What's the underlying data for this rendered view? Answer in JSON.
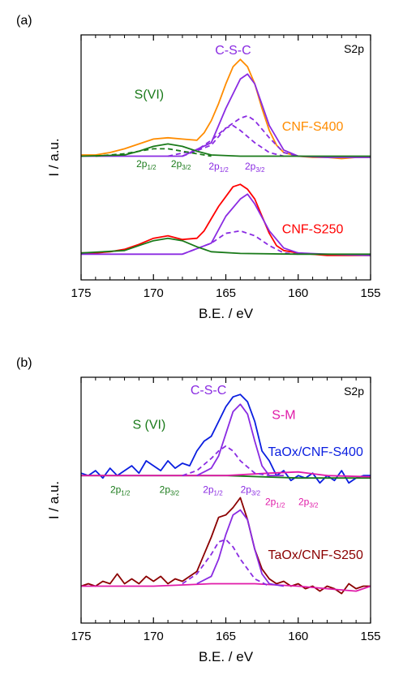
{
  "chart_data": [
    {
      "type": "line",
      "panel_label": "(a)",
      "corner_label": "S2p",
      "xlabel": "B.E. / eV",
      "ylabel": "I / a.u.",
      "xlim": [
        175,
        155
      ],
      "x_ticks": [
        175,
        170,
        165,
        160,
        155
      ],
      "ylim": [
        0,
        1
      ],
      "y_ticks_shown": false,
      "annotations": [
        {
          "text": "C-S-C",
          "color": "#8a2be2",
          "x": 164.5,
          "y": 0.92
        },
        {
          "text": "S(VI)",
          "color": "#1a7a1a",
          "x": 170.3,
          "y": 0.74
        },
        {
          "text": "CNF-S400",
          "color": "#ff8c00",
          "x": 159.0,
          "y": 0.61
        },
        {
          "text": "CNF-S250",
          "color": "#ff0000",
          "x": 159.0,
          "y": 0.19
        },
        {
          "text": "2p",
          "sub": "1/2",
          "color": "#1a7a1a",
          "x": 170.5,
          "y": 0.46
        },
        {
          "text": "2p",
          "sub": "3/2",
          "color": "#1a7a1a",
          "x": 168.1,
          "y": 0.46
        },
        {
          "text": "2p",
          "sub": "1/2",
          "color": "#8a2be2",
          "x": 165.5,
          "y": 0.45
        },
        {
          "text": "2p",
          "sub": "3/2",
          "color": "#8a2be2",
          "x": 163.0,
          "y": 0.45
        }
      ],
      "series": [
        {
          "name": "CNF-S400",
          "color": "#ff8c00",
          "style": "solid",
          "x": [
            175,
            174,
            173,
            172,
            171,
            170,
            169,
            168,
            167,
            166.5,
            166,
            165.5,
            165,
            164.5,
            164,
            163.5,
            163,
            162.5,
            162,
            161.5,
            161,
            160,
            159,
            158,
            157,
            156,
            155
          ],
          "y": [
            0.51,
            0.51,
            0.52,
            0.535,
            0.555,
            0.575,
            0.58,
            0.575,
            0.57,
            0.6,
            0.65,
            0.72,
            0.8,
            0.87,
            0.9,
            0.87,
            0.8,
            0.7,
            0.61,
            0.55,
            0.52,
            0.505,
            0.5,
            0.5,
            0.495,
            0.5,
            0.5
          ]
        },
        {
          "name": "CNF-S400 fit envelope",
          "color": "#8a2be2",
          "style": "solid",
          "x": [
            175,
            172,
            170,
            168,
            166,
            165,
            164,
            163.5,
            163,
            162,
            161,
            160,
            158,
            155
          ],
          "y": [
            0.505,
            0.505,
            0.505,
            0.505,
            0.56,
            0.7,
            0.82,
            0.84,
            0.8,
            0.63,
            0.53,
            0.505,
            0.5,
            0.5
          ]
        },
        {
          "name": "CNF-S400 2p3/2 (C-S-C)",
          "color": "#8a2be2",
          "style": "dashed",
          "x": [
            168,
            166,
            165,
            164,
            163.5,
            163,
            162,
            161,
            160
          ],
          "y": [
            0.505,
            0.55,
            0.62,
            0.66,
            0.67,
            0.65,
            0.58,
            0.52,
            0.505
          ]
        },
        {
          "name": "CNF-S400 2p1/2 (C-S-C)",
          "color": "#8a2be2",
          "style": "dashed",
          "x": [
            169,
            167,
            166,
            165,
            164.5,
            164,
            163,
            162,
            161
          ],
          "y": [
            0.505,
            0.53,
            0.57,
            0.62,
            0.63,
            0.61,
            0.56,
            0.52,
            0.505
          ]
        },
        {
          "name": "CNF-S400 S(VI)",
          "color": "#1a7a1a",
          "style": "solid",
          "x": [
            175,
            172,
            171,
            170,
            169,
            168,
            167,
            166,
            164,
            160,
            155
          ],
          "y": [
            0.505,
            0.51,
            0.525,
            0.545,
            0.555,
            0.545,
            0.525,
            0.51,
            0.505,
            0.505,
            0.505
          ]
        },
        {
          "name": "CNF-S400 S(VI) components",
          "color": "#1a7a1a",
          "style": "dashed",
          "x": [
            174,
            172,
            171,
            170,
            169,
            168,
            167,
            166
          ],
          "y": [
            0.505,
            0.515,
            0.525,
            0.535,
            0.535,
            0.525,
            0.515,
            0.505
          ]
        },
        {
          "name": "CNF-S250",
          "color": "#ff0000",
          "style": "solid",
          "x": [
            175,
            174,
            173,
            172,
            171,
            170,
            169,
            168,
            167,
            166.5,
            166,
            165.5,
            165,
            164.5,
            164,
            163.5,
            163,
            162.5,
            162,
            161.5,
            161,
            160,
            159,
            158,
            157,
            156,
            155
          ],
          "y": [
            0.11,
            0.11,
            0.115,
            0.125,
            0.145,
            0.17,
            0.18,
            0.165,
            0.17,
            0.2,
            0.25,
            0.3,
            0.34,
            0.38,
            0.39,
            0.37,
            0.33,
            0.26,
            0.19,
            0.14,
            0.12,
            0.11,
            0.105,
            0.1,
            0.1,
            0.1,
            0.1
          ]
        },
        {
          "name": "CNF-S250 fit envelope",
          "color": "#8a2be2",
          "style": "solid",
          "x": [
            175,
            172,
            170,
            168,
            166,
            165,
            164,
            163.5,
            163,
            162,
            161,
            160,
            158,
            155
          ],
          "y": [
            0.105,
            0.105,
            0.105,
            0.105,
            0.15,
            0.26,
            0.33,
            0.35,
            0.31,
            0.2,
            0.13,
            0.11,
            0.105,
            0.1
          ]
        },
        {
          "name": "CNF-S250 2p (C-S-C)",
          "color": "#8a2be2",
          "style": "dashed",
          "x": [
            168,
            166,
            165,
            164,
            163,
            162,
            161,
            160
          ],
          "y": [
            0.105,
            0.15,
            0.19,
            0.2,
            0.18,
            0.14,
            0.11,
            0.105
          ]
        },
        {
          "name": "CNF-S250 S(VI)",
          "color": "#1a7a1a",
          "style": "solid",
          "x": [
            175,
            172,
            171,
            170,
            169,
            168,
            167,
            166,
            164,
            160,
            155
          ],
          "y": [
            0.11,
            0.12,
            0.14,
            0.16,
            0.17,
            0.16,
            0.135,
            0.115,
            0.108,
            0.105,
            0.105
          ]
        }
      ]
    },
    {
      "type": "line",
      "panel_label": "(b)",
      "corner_label": "S2p",
      "xlabel": "B.E. / eV",
      "ylabel": "I / a.u.",
      "xlim": [
        175,
        155
      ],
      "x_ticks": [
        175,
        170,
        165,
        160,
        155
      ],
      "ylim": [
        0,
        1
      ],
      "y_ticks_shown": false,
      "annotations": [
        {
          "text": "C-S-C",
          "color": "#8a2be2",
          "x": 166.2,
          "y": 0.93
        },
        {
          "text": "S-M",
          "color": "#e01aa8",
          "x": 161.0,
          "y": 0.83
        },
        {
          "text": "S (VI)",
          "color": "#1a7a1a",
          "x": 170.3,
          "y": 0.79
        },
        {
          "text": "TaOx/CNF-S400",
          "color": "#0a1ee0",
          "x": 158.8,
          "y": 0.68
        },
        {
          "text": "TaOx/CNF-S250",
          "color": "#8b0000",
          "x": 158.8,
          "y": 0.26
        },
        {
          "text": "2p",
          "sub": "1/2",
          "color": "#1a7a1a",
          "x": 172.3,
          "y": 0.53
        },
        {
          "text": "2p",
          "sub": "3/2",
          "color": "#1a7a1a",
          "x": 168.9,
          "y": 0.53
        },
        {
          "text": "2p",
          "sub": "1/2",
          "color": "#8a2be2",
          "x": 165.9,
          "y": 0.53
        },
        {
          "text": "2p",
          "sub": "3/2",
          "color": "#8a2be2",
          "x": 163.3,
          "y": 0.53
        },
        {
          "text": "2p",
          "sub": "1/2",
          "color": "#e01aa8",
          "x": 161.6,
          "y": 0.48
        },
        {
          "text": "2p",
          "sub": "3/2",
          "color": "#e01aa8",
          "x": 159.3,
          "y": 0.48
        }
      ],
      "series": [
        {
          "name": "TaOx/CNF-S400",
          "color": "#0a1ee0",
          "style": "solid",
          "x": [
            175,
            174.5,
            174,
            173.5,
            173,
            172.5,
            172,
            171.5,
            171,
            170.5,
            170,
            169.5,
            169,
            168.5,
            168,
            167.5,
            167,
            166.5,
            166,
            165.5,
            165,
            164.5,
            164,
            163.5,
            163,
            162.5,
            162,
            161.5,
            161,
            160.5,
            160,
            159.5,
            159,
            158.5,
            158,
            157.5,
            157,
            156.5,
            156,
            155.5,
            155
          ],
          "y": [
            0.61,
            0.6,
            0.62,
            0.59,
            0.63,
            0.6,
            0.62,
            0.64,
            0.61,
            0.66,
            0.64,
            0.62,
            0.66,
            0.63,
            0.65,
            0.64,
            0.7,
            0.74,
            0.76,
            0.82,
            0.88,
            0.92,
            0.93,
            0.9,
            0.82,
            0.7,
            0.66,
            0.6,
            0.62,
            0.58,
            0.6,
            0.59,
            0.61,
            0.57,
            0.6,
            0.58,
            0.62,
            0.57,
            0.59,
            0.6,
            0.6
          ]
        },
        {
          "name": "TaOx/CNF-S400 background",
          "color": "#1a7a1a",
          "style": "solid",
          "x": [
            175,
            170,
            165,
            160,
            155
          ],
          "y": [
            0.6,
            0.6,
            0.6,
            0.59,
            0.59
          ]
        },
        {
          "name": "TaOx/CNF-S400 S-M",
          "color": "#e01aa8",
          "style": "solid",
          "x": [
            175,
            165,
            162,
            160,
            158,
            155
          ],
          "y": [
            0.6,
            0.6,
            0.61,
            0.615,
            0.6,
            0.595
          ]
        },
        {
          "name": "TaOx/CNF-S400 C-S-C 2p3/2",
          "color": "#8a2be2",
          "style": "solid",
          "x": [
            167,
            166,
            165.5,
            165,
            164.5,
            164,
            163.5,
            163,
            162.5,
            162,
            161
          ],
          "y": [
            0.6,
            0.63,
            0.68,
            0.77,
            0.86,
            0.89,
            0.85,
            0.74,
            0.64,
            0.6,
            0.6
          ]
        },
        {
          "name": "TaOx/CNF-S400 C-S-C 2p1/2",
          "color": "#8a2be2",
          "style": "dashed",
          "x": [
            168,
            167,
            166,
            165.5,
            165,
            164.5,
            164,
            163,
            162
          ],
          "y": [
            0.6,
            0.62,
            0.67,
            0.7,
            0.72,
            0.7,
            0.66,
            0.61,
            0.6
          ]
        },
        {
          "name": "TaOx/CNF-S250",
          "color": "#8b0000",
          "style": "solid",
          "x": [
            175,
            174.5,
            174,
            173.5,
            173,
            172.5,
            172,
            171.5,
            171,
            170.5,
            170,
            169.5,
            169,
            168.5,
            168,
            167.5,
            167,
            166.5,
            166,
            165.5,
            165,
            164.5,
            164,
            163.5,
            163,
            162.5,
            162,
            161.5,
            161,
            160.5,
            160,
            159.5,
            159,
            158.5,
            158,
            157.5,
            157,
            156.5,
            156,
            155.5,
            155
          ],
          "y": [
            0.15,
            0.16,
            0.15,
            0.17,
            0.16,
            0.2,
            0.16,
            0.18,
            0.16,
            0.19,
            0.17,
            0.19,
            0.16,
            0.18,
            0.17,
            0.19,
            0.21,
            0.28,
            0.35,
            0.43,
            0.44,
            0.47,
            0.51,
            0.42,
            0.3,
            0.22,
            0.18,
            0.16,
            0.17,
            0.15,
            0.16,
            0.14,
            0.15,
            0.13,
            0.15,
            0.14,
            0.12,
            0.16,
            0.14,
            0.15,
            0.15
          ]
        },
        {
          "name": "TaOx/CNF-S250 background",
          "color": "#e01aa8",
          "style": "solid",
          "x": [
            175,
            170,
            166,
            163,
            160,
            158,
            156,
            155
          ],
          "y": [
            0.15,
            0.15,
            0.16,
            0.16,
            0.15,
            0.14,
            0.13,
            0.15
          ]
        },
        {
          "name": "TaOx/CNF-S250 C-S-C 2p3/2",
          "color": "#8a2be2",
          "style": "solid",
          "x": [
            167,
            166,
            165.5,
            165,
            164.5,
            164,
            163.5,
            163,
            162.5,
            162,
            161
          ],
          "y": [
            0.16,
            0.19,
            0.26,
            0.36,
            0.44,
            0.46,
            0.42,
            0.3,
            0.2,
            0.16,
            0.15
          ]
        },
        {
          "name": "TaOx/CNF-S250 C-S-C 2p1/2",
          "color": "#8a2be2",
          "style": "dashed",
          "x": [
            168,
            167,
            166,
            165.5,
            165,
            164.5,
            164,
            163,
            162
          ],
          "y": [
            0.16,
            0.2,
            0.28,
            0.33,
            0.34,
            0.31,
            0.26,
            0.18,
            0.15
          ]
        }
      ]
    }
  ]
}
